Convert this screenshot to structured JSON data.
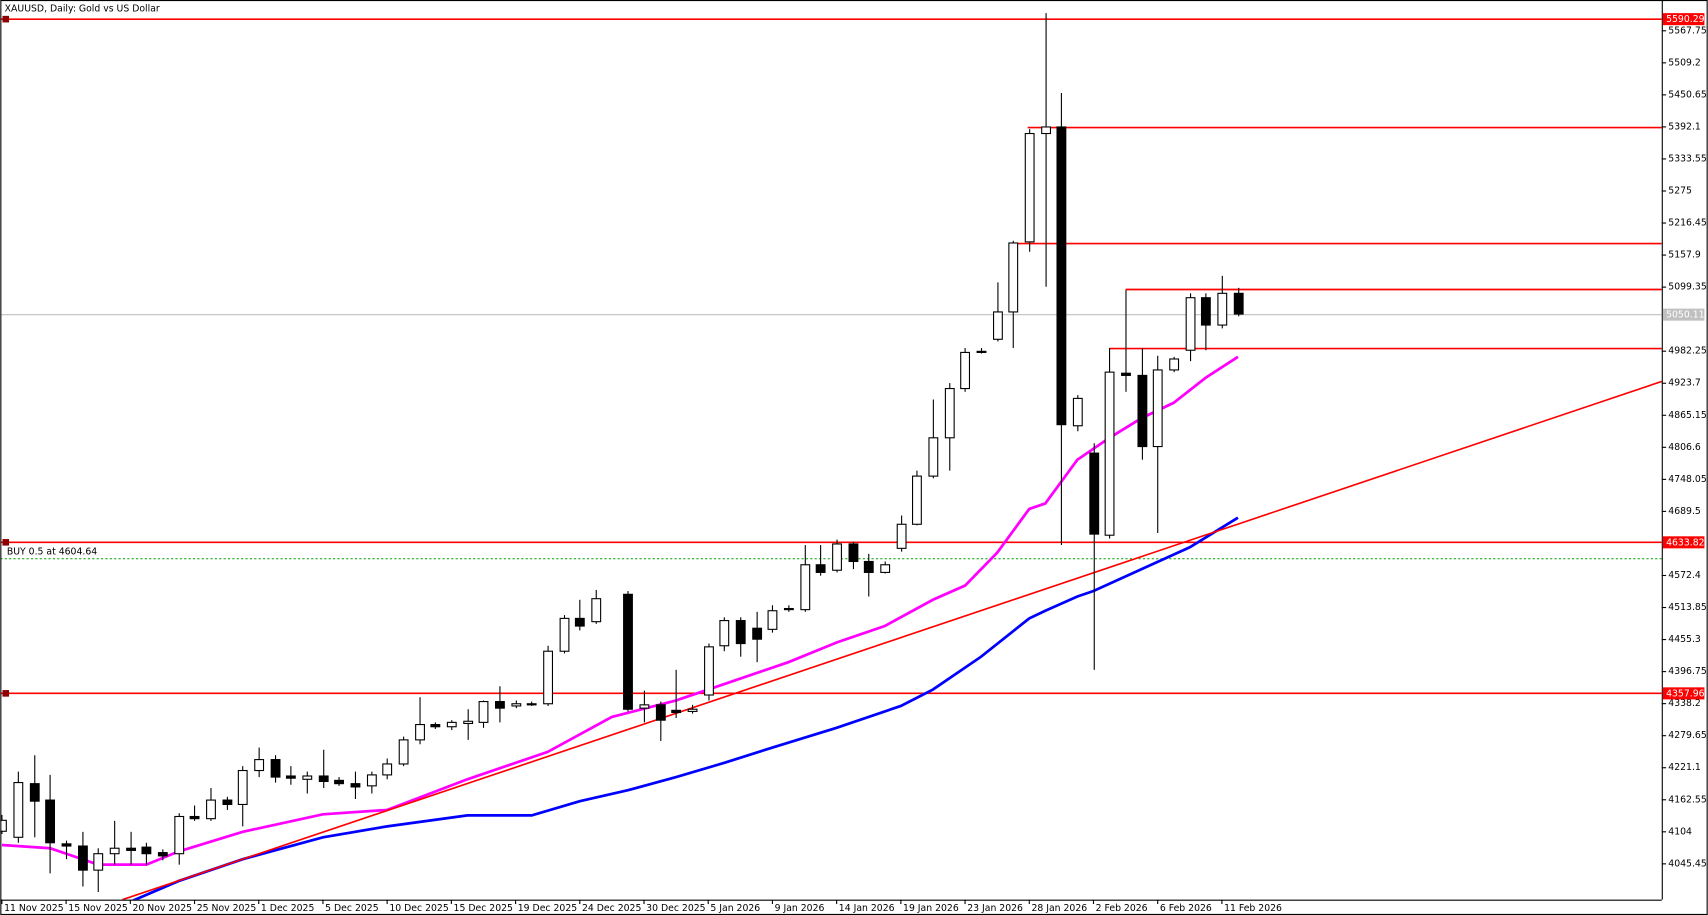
{
  "chart_data": {
    "type": "candlestick",
    "title": "XAUUSD, Daily:  Gold vs US Dollar",
    "xlim": [
      -0.1,
      103.4
    ],
    "ylim": [
      3952,
      5624
    ],
    "yticks": [
      5567.75,
      5509.2,
      5450.65,
      5392.1,
      5333.55,
      5275,
      5216.45,
      5157.9,
      5099.35,
      4982.25,
      4923.7,
      4865.15,
      4806.6,
      4748.05,
      4689.5,
      4572.4,
      4513.85,
      4455.3,
      4396.75,
      4338.2,
      4279.65,
      4221.1,
      4162.55,
      4104,
      4045.45
    ],
    "xticks": [
      {
        "value": 0,
        "label": "11 Nov 2025"
      },
      {
        "value": 4,
        "label": "15 Nov 2025"
      },
      {
        "value": 8,
        "label": "20 Nov 2025"
      },
      {
        "value": 12,
        "label": "25 Nov 2025"
      },
      {
        "value": 16,
        "label": "1 Dec 2025"
      },
      {
        "value": 20,
        "label": "5 Dec 2025"
      },
      {
        "value": 24,
        "label": "10 Dec 2025"
      },
      {
        "value": 28,
        "label": "15 Dec 2025"
      },
      {
        "value": 32,
        "label": "19 Dec 2025"
      },
      {
        "value": 36,
        "label": "24 Dec 2025"
      },
      {
        "value": 40,
        "label": "30 Dec 2025"
      },
      {
        "value": 44,
        "label": "5 Jan 2026"
      },
      {
        "value": 48,
        "label": "9 Jan 2026"
      },
      {
        "value": 52,
        "label": "14 Jan 2026"
      },
      {
        "value": 56,
        "label": "19 Jan 2026"
      },
      {
        "value": 60,
        "label": "23 Jan 2026"
      },
      {
        "value": 64,
        "label": "28 Jan 2026"
      },
      {
        "value": 68,
        "label": "2 Feb 2026"
      },
      {
        "value": 72,
        "label": "6 Feb 2026"
      },
      {
        "value": 76,
        "label": "11 Feb 2026"
      }
    ],
    "up_color": "#ffffff",
    "down_color": "#000000",
    "open": [
      4105,
      4094,
      4192,
      4162,
      4082,
      4078,
      4034,
      4064,
      4074,
      4076,
      4066,
      4064,
      4132,
      4128,
      4162,
      4154,
      4216,
      4236,
      4206,
      4200,
      4206,
      4198,
      4192,
      4188,
      4208,
      4228,
      4272,
      4300,
      4296,
      4302,
      4304,
      4342,
      4334,
      4336,
      4338,
      4434,
      4494,
      4488,
      null,
      4538,
      4330,
      4336,
      4326,
      4324,
      4354,
      4444,
      4490,
      4476,
      4474,
      4512,
      4510,
      4592,
      4582,
      4630,
      4598,
      4578,
      4622,
      4666,
      4754,
      4824,
      4914,
      4980,
      5004,
      5054,
      5182,
      5380,
      5392,
      4846,
      4796,
      4646,
      4942,
      4938,
      4808,
      4948,
      4984,
      5080,
      5030,
      5088
    ],
    "high": [
      4135,
      4214,
      4244,
      4208,
      4088,
      4104,
      4074,
      4124,
      4104,
      4084,
      4072,
      4138,
      4152,
      4184,
      4168,
      4224,
      4258,
      4244,
      4224,
      4214,
      4254,
      4204,
      4214,
      4214,
      4238,
      4278,
      4350,
      4304,
      4308,
      4328,
      4344,
      4370,
      4344,
      4342,
      4444,
      4500,
      4528,
      4546,
      null,
      4544,
      4362,
      4342,
      4400,
      4336,
      4448,
      4496,
      4496,
      4506,
      4518,
      4518,
      4628,
      4628,
      4638,
      4634,
      4612,
      4598,
      4682,
      4764,
      4894,
      4924,
      4988,
      4988,
      5108,
      5184,
      5388,
      5600,
      5454,
      4902,
      4814,
      4988,
      5094,
      4988,
      4974,
      4972,
      5088,
      5088,
      5120,
      5098
    ],
    "low": [
      4100,
      4084,
      4094,
      4028,
      4054,
      4004,
      3994,
      4044,
      4044,
      4044,
      4052,
      4044,
      4124,
      4124,
      4144,
      4114,
      4204,
      4194,
      4190,
      4174,
      4184,
      4188,
      4164,
      4174,
      4200,
      4224,
      4264,
      4292,
      4290,
      4272,
      4294,
      4304,
      4330,
      4334,
      4334,
      4430,
      4472,
      4484,
      null,
      4324,
      4304,
      4270,
      4312,
      4320,
      4344,
      4434,
      4424,
      4414,
      4468,
      4506,
      4506,
      4572,
      4578,
      4584,
      4534,
      4576,
      4616,
      4664,
      4750,
      4764,
      4908,
      4978,
      5000,
      4988,
      5164,
      5100,
      4628,
      4836,
      4400,
      4640,
      4908,
      4784,
      4650,
      4944,
      4964,
      4984,
      5024,
      5046
    ],
    "close": [
      4125,
      4194,
      4160,
      4084,
      4078,
      4034,
      4064,
      4074,
      4070,
      4064,
      4060,
      4132,
      4128,
      4162,
      4154,
      4216,
      4236,
      4204,
      4202,
      4206,
      4196,
      4192,
      4186,
      4208,
      4228,
      4272,
      4300,
      4296,
      4304,
      4306,
      4342,
      4330,
      4338,
      4338,
      4434,
      4494,
      4480,
      4530,
      null,
      4328,
      4336,
      4308,
      4322,
      4328,
      4442,
      4490,
      4448,
      4456,
      4508,
      4510,
      4592,
      4578,
      4630,
      4598,
      4578,
      4592,
      4666,
      4754,
      4824,
      4914,
      4980,
      4982,
      5054,
      5180,
      5380,
      5392,
      4848,
      4896,
      4648,
      4944,
      4938,
      4808,
      4948,
      4968,
      5080,
      5030,
      5088,
      5050.11
    ],
    "indicators": [
      {
        "color": "#ff00ff",
        "x": [
          0,
          3,
          6,
          9,
          11,
          15,
          20,
          24,
          29,
          34,
          38,
          42,
          45,
          49,
          52,
          55,
          58,
          60,
          62,
          64,
          65,
          67,
          69,
          71,
          73,
          75,
          77
        ],
        "values": [
          4080,
          4074,
          4044,
          4044,
          4068,
          4104,
          4136,
          4144,
          4200,
          4250,
          4314,
          4344,
          4374,
          4414,
          4450,
          4480,
          4528,
          4554,
          4614,
          4694,
          4704,
          4784,
          4824,
          4860,
          4888,
          4934,
          4972
        ]
      },
      {
        "color": "#0000ff",
        "x": [
          7.5,
          11,
          15,
          20,
          24,
          29,
          33,
          36,
          39,
          42,
          45,
          48,
          52,
          56,
          58,
          61,
          64,
          65,
          67,
          68,
          71,
          74,
          77
        ],
        "values": [
          3970,
          4014,
          4054,
          4094,
          4114,
          4134,
          4134,
          4160,
          4180,
          4204,
          4230,
          4258,
          4294,
          4334,
          4364,
          4424,
          4494,
          4508,
          4534,
          4544,
          4584,
          4624,
          4678
        ]
      },
      {
        "color": "#ff0000",
        "x": [
          7.5,
          103.5
        ],
        "values": [
          3980,
          4928
        ]
      }
    ],
    "levels": [
      {
        "value": 5590.29,
        "start": -0.1,
        "color": "#ff0000",
        "tag": true
      },
      {
        "value": 5392.1,
        "start": 63.9,
        "color": "#ff0000",
        "tag": false
      },
      {
        "value": 5180,
        "start": 62.9,
        "color": "#ff0000",
        "tag": false
      },
      {
        "value": 5096,
        "start": 70,
        "color": "#ff0000",
        "tag": false
      },
      {
        "value": 4988,
        "start": 69,
        "color": "#ff0000",
        "tag": false
      },
      {
        "value": 5050.11,
        "start": -0.1,
        "color": "#c0c0c0",
        "tag": true
      },
      {
        "value": 4633.82,
        "start": -0.1,
        "color": "#ff0000",
        "tag": true
      },
      {
        "value": 4357.96,
        "start": -0.1,
        "color": "#ff0000",
        "tag": true
      }
    ],
    "order": {
      "label": "BUY 0.5 at 4604.64",
      "price": 4604.64,
      "color": "#00a000"
    }
  }
}
